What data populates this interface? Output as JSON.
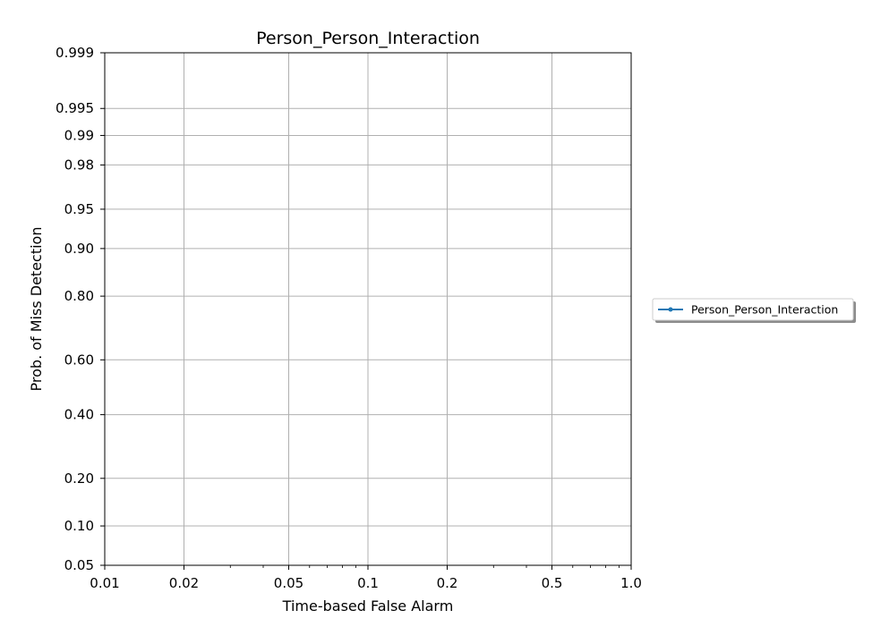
{
  "chart_data": {
    "type": "line",
    "title": "Person_Person_Interaction",
    "xlabel": "Time-based False Alarm",
    "ylabel": "Prob. of Miss Detection",
    "x_scale": "log",
    "y_scale": "probit",
    "xlim": [
      0.01,
      1.0
    ],
    "ylim": [
      0.05,
      0.999
    ],
    "x_ticks": [
      0.01,
      0.02,
      0.05,
      0.1,
      0.2,
      0.5,
      1.0
    ],
    "x_tick_labels": [
      "0.01",
      "0.02",
      "0.05",
      "0.1",
      "0.2",
      "0.5",
      "1.0"
    ],
    "y_ticks": [
      0.05,
      0.1,
      0.2,
      0.4,
      0.6,
      0.8,
      0.9,
      0.95,
      0.98,
      0.99,
      0.995,
      0.999
    ],
    "y_tick_labels": [
      "0.05",
      "0.10",
      "0.20",
      "0.40",
      "0.60",
      "0.80",
      "0.90",
      "0.95",
      "0.98",
      "0.99",
      "0.995",
      "0.999"
    ],
    "grid": true,
    "legend_position": "right-outside",
    "series": [
      {
        "name": "Person_Person_Interaction",
        "color": "#1f77b4",
        "marker": "dot",
        "points": []
      }
    ]
  }
}
